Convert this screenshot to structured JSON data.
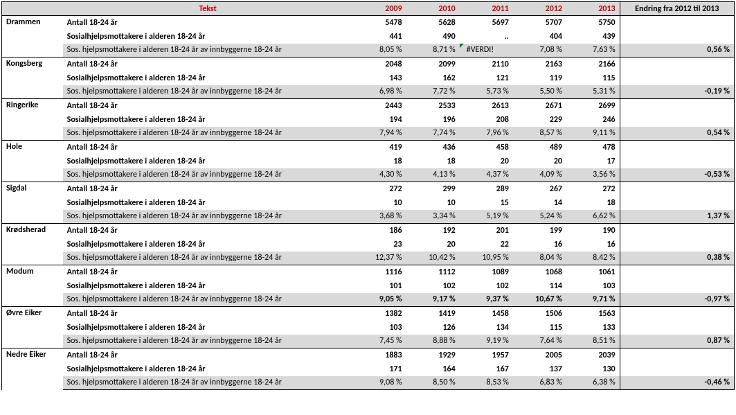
{
  "headers": {
    "tekst": "Tekst",
    "y2009": "2009",
    "y2010": "2010",
    "y2011": "2011",
    "y2012": "2012",
    "y2013": "2013",
    "change": "Endring fra 2012 til 2013"
  },
  "rowLabels": {
    "antall": "Antall 18-24 år",
    "mottakere": "Sosialhjelpsmottakere i alderen 18-24 år",
    "andel": "Sos. hjelpsmottakere i alderen 18-24 år av innbyggerne 18-24 år"
  },
  "municipalities": [
    {
      "name": "Drammen",
      "antall": {
        "2009": "5478",
        "2010": "5628",
        "2011": "5697",
        "2012": "5707",
        "2013": "5750"
      },
      "mottakere": {
        "2009": "441",
        "2010": "490",
        "2011": "..",
        "2012": "404",
        "2013": "439"
      },
      "andel": {
        "2009": "8,05 %",
        "2010": "8,71 %",
        "2011": "#VERDI!",
        "2012": "7,08 %",
        "2013": "7,63 %"
      },
      "andel_err_2011": true,
      "change": "0,56 %"
    },
    {
      "name": "Kongsberg",
      "antall": {
        "2009": "2048",
        "2010": "2099",
        "2011": "2110",
        "2012": "2163",
        "2013": "2166"
      },
      "mottakere": {
        "2009": "143",
        "2010": "162",
        "2011": "121",
        "2012": "119",
        "2013": "115"
      },
      "andel": {
        "2009": "6,98 %",
        "2010": "7,72 %",
        "2011": "5,73 %",
        "2012": "5,50 %",
        "2013": "5,31 %"
      },
      "change": "-0,19 %"
    },
    {
      "name": "Ringerike",
      "antall": {
        "2009": "2443",
        "2010": "2533",
        "2011": "2613",
        "2012": "2671",
        "2013": "2699"
      },
      "mottakere": {
        "2009": "194",
        "2010": "196",
        "2011": "208",
        "2012": "229",
        "2013": "246"
      },
      "andel": {
        "2009": "7,94 %",
        "2010": "7,74 %",
        "2011": "7,96 %",
        "2012": "8,57 %",
        "2013": "9,11 %"
      },
      "change": "0,54 %"
    },
    {
      "name": "Hole",
      "antall": {
        "2009": "419",
        "2010": "436",
        "2011": "458",
        "2012": "489",
        "2013": "478"
      },
      "mottakere": {
        "2009": "18",
        "2010": "18",
        "2011": "20",
        "2012": "20",
        "2013": "17"
      },
      "andel": {
        "2009": "4,30 %",
        "2010": "4,13 %",
        "2011": "4,37 %",
        "2012": "4,09 %",
        "2013": "3,56 %"
      },
      "change": "-0,53 %"
    },
    {
      "name": "Sigdal",
      "antall": {
        "2009": "272",
        "2010": "299",
        "2011": "289",
        "2012": "267",
        "2013": "272"
      },
      "mottakere": {
        "2009": "10",
        "2010": "10",
        "2011": "15",
        "2012": "14",
        "2013": "18"
      },
      "andel": {
        "2009": "3,68 %",
        "2010": "3,34 %",
        "2011": "5,19 %",
        "2012": "5,24 %",
        "2013": "6,62 %"
      },
      "change": "1,37 %"
    },
    {
      "name": "Krødsherad",
      "antall": {
        "2009": "186",
        "2010": "192",
        "2011": "201",
        "2012": "199",
        "2013": "190"
      },
      "mottakere": {
        "2009": "23",
        "2010": "20",
        "2011": "22",
        "2012": "16",
        "2013": "16"
      },
      "andel": {
        "2009": "12,37 %",
        "2010": "10,42 %",
        "2011": "10,95 %",
        "2012": "8,04 %",
        "2013": "8,42 %"
      },
      "change": "0,38 %"
    },
    {
      "name": "Modum",
      "antall": {
        "2009": "1116",
        "2010": "1112",
        "2011": "1089",
        "2012": "1068",
        "2013": "1061"
      },
      "mottakere": {
        "2009": "101",
        "2010": "102",
        "2011": "102",
        "2012": "114",
        "2013": "103"
      },
      "andel": {
        "2009": "9,05 %",
        "2010": "9,17 %",
        "2011": "9,37 %",
        "2012": "10,67 %",
        "2013": "9,71 %"
      },
      "andel_bold": true,
      "change": "-0,97 %"
    },
    {
      "name": "Øvre Eiker",
      "antall": {
        "2009": "1382",
        "2010": "1419",
        "2011": "1458",
        "2012": "1506",
        "2013": "1563"
      },
      "mottakere": {
        "2009": "103",
        "2010": "126",
        "2011": "134",
        "2012": "115",
        "2013": "133"
      },
      "andel": {
        "2009": "7,45 %",
        "2010": "8,88 %",
        "2011": "9,19 %",
        "2012": "7,64 %",
        "2013": "8,51 %"
      },
      "change": "0,87 %"
    },
    {
      "name": "Nedre Eiker",
      "antall": {
        "2009": "1883",
        "2010": "1929",
        "2011": "1957",
        "2012": "2005",
        "2013": "2039"
      },
      "mottakere": {
        "2009": "171",
        "2010": "164",
        "2011": "167",
        "2012": "137",
        "2013": "130"
      },
      "andel": {
        "2009": "9,08 %",
        "2010": "8,50 %",
        "2011": "8,53 %",
        "2012": "6,83 %",
        "2013": "6,38 %"
      },
      "change": "-0,46 %"
    }
  ]
}
